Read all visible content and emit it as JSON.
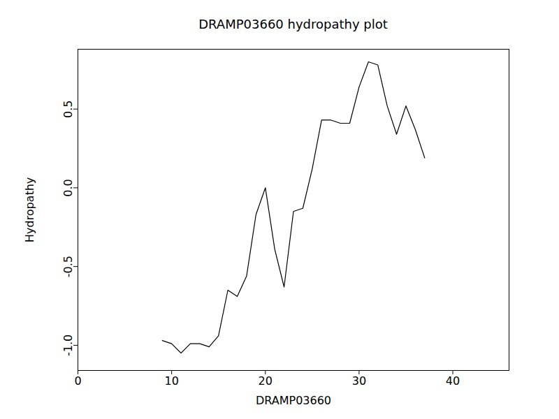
{
  "chart_data": {
    "type": "line",
    "title": "DRAMP03660 hydropathy plot",
    "x_label": "DRAMP03660",
    "y_label": "Hydropathy",
    "x": [
      9,
      10,
      11,
      12,
      13,
      14,
      15,
      16,
      17,
      18,
      19,
      20,
      21,
      22,
      23,
      24,
      25,
      26,
      27,
      28,
      29,
      30,
      31,
      32,
      33,
      34,
      35,
      36,
      37
    ],
    "values": [
      -0.97,
      -0.99,
      -1.05,
      -0.99,
      -0.99,
      -1.01,
      -0.94,
      -0.65,
      -0.69,
      -0.56,
      -0.17,
      0.0,
      -0.39,
      -0.63,
      -0.15,
      -0.13,
      0.12,
      0.43,
      0.43,
      0.41,
      0.41,
      0.64,
      0.8,
      0.78,
      0.52,
      0.34,
      0.52,
      0.37,
      0.19
    ],
    "color": "#000000",
    "xlim": [
      0,
      46
    ],
    "xticks": [
      0,
      10,
      20,
      30,
      40
    ],
    "ylim": [
      -1.16,
      0.88
    ],
    "yticks": [
      {
        "value": -1,
        "label": "-1.0"
      },
      {
        "value": -0.5,
        "label": "-0.5"
      },
      {
        "value": 0,
        "label": "0.0"
      },
      0.5
    ]
  }
}
